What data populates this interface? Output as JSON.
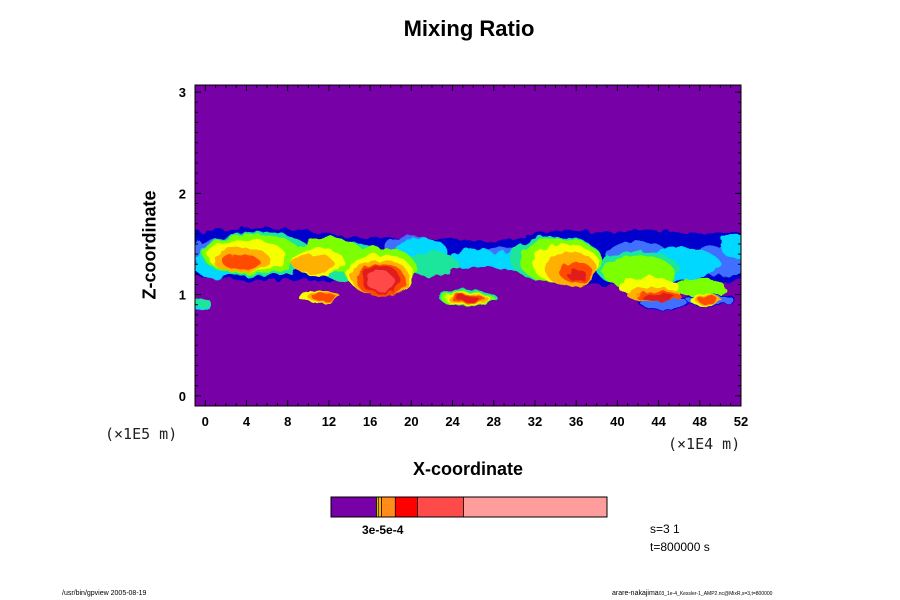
{
  "chart_data": {
    "type": "heatmap",
    "title": "Mixing Ratio",
    "xlabel": "X-coordinate",
    "ylabel": "Z-coordinate",
    "x_unit": "(×1E4 m)",
    "y_unit": "(×1E5 m)",
    "xlim": [
      -1,
      52
    ],
    "ylim": [
      -0.1,
      3.07
    ],
    "x_ticks": [
      "0",
      "4",
      "8",
      "12",
      "16",
      "20",
      "24",
      "28",
      "32",
      "36",
      "40",
      "44",
      "48",
      "52"
    ],
    "y_ticks": [
      "0",
      "1",
      "2",
      "3"
    ],
    "x_tick_values": [
      0,
      4,
      8,
      12,
      16,
      20,
      24,
      28,
      32,
      36,
      40,
      44,
      48,
      52
    ],
    "y_tick_values": [
      0,
      1,
      2,
      3
    ],
    "background_color": "#7700a6",
    "band": {
      "top_edge": [
        [
          -1,
          1.62
        ],
        [
          2,
          1.64
        ],
        [
          6,
          1.66
        ],
        [
          10,
          1.63
        ],
        [
          13,
          1.58
        ],
        [
          15,
          1.56
        ],
        [
          18,
          1.57
        ],
        [
          21,
          1.56
        ],
        [
          24,
          1.55
        ],
        [
          27,
          1.52
        ],
        [
          30,
          1.55
        ],
        [
          33,
          1.62
        ],
        [
          36,
          1.63
        ],
        [
          39,
          1.61
        ],
        [
          42,
          1.64
        ],
        [
          45,
          1.62
        ],
        [
          48,
          1.6
        ],
        [
          52,
          1.62
        ]
      ],
      "bottom_edge": [
        [
          -1,
          1.18
        ],
        [
          4,
          1.14
        ],
        [
          8,
          1.15
        ],
        [
          12,
          1.13
        ],
        [
          15,
          1.17
        ],
        [
          18,
          1.22
        ],
        [
          21,
          1.28
        ],
        [
          24,
          1.31
        ],
        [
          27,
          1.28
        ],
        [
          30,
          1.27
        ],
        [
          33,
          1.19
        ],
        [
          37,
          1.1
        ],
        [
          40,
          1.09
        ],
        [
          43,
          1.02
        ],
        [
          46,
          1.04
        ],
        [
          49,
          1.07
        ],
        [
          52,
          1.15
        ]
      ]
    },
    "levels": [
      {
        "color": "#0000cc",
        "blobs": [
          [
            0.5,
            1.42,
            3,
            0.18
          ],
          [
            14,
            1.38,
            3,
            0.15
          ],
          [
            25,
            1.4,
            3,
            0.12
          ],
          [
            41,
            1.4,
            4,
            0.18
          ],
          [
            48,
            1.3,
            5,
            0.2
          ],
          [
            51,
            1.45,
            1.5,
            0.15
          ],
          [
            44.5,
            0.92,
            2.5,
            0.07
          ],
          [
            49,
            0.95,
            2.5,
            0.06
          ]
        ]
      },
      {
        "color": "#3f70ff",
        "blobs": [
          [
            1.5,
            1.4,
            3,
            0.16
          ],
          [
            20,
            1.46,
            2.8,
            0.12
          ],
          [
            29,
            1.36,
            2.5,
            0.1
          ],
          [
            42,
            1.38,
            3,
            0.15
          ],
          [
            50,
            1.33,
            3,
            0.15
          ],
          [
            44.5,
            0.92,
            2.3,
            0.06
          ],
          [
            49,
            0.95,
            2.3,
            0.05
          ]
        ]
      },
      {
        "color": "#00d8ff",
        "blobs": [
          [
            1,
            1.3,
            2.2,
            0.14
          ],
          [
            21,
            1.42,
            2.5,
            0.14
          ],
          [
            26,
            1.36,
            2.2,
            0.1
          ],
          [
            30,
            1.33,
            2.5,
            0.1
          ],
          [
            46,
            1.3,
            4,
            0.16
          ],
          [
            51.5,
            1.48,
            1.5,
            0.12
          ],
          [
            -0.5,
            0.9,
            1,
            0.05
          ]
        ]
      },
      {
        "color": "#1ee69b",
        "blobs": [
          [
            5,
            1.4,
            5.5,
            0.22
          ],
          [
            14,
            1.32,
            3,
            0.2
          ],
          [
            22,
            1.3,
            2.5,
            0.12
          ],
          [
            34,
            1.35,
            4.5,
            0.22
          ],
          [
            42,
            1.25,
            4,
            0.18
          ],
          [
            25.5,
            0.97,
            2.8,
            0.08
          ],
          [
            -0.3,
            0.92,
            0.8,
            0.05
          ]
        ]
      },
      {
        "color": "#7cff00",
        "blobs": [
          [
            4.5,
            1.4,
            4.8,
            0.2
          ],
          [
            12,
            1.38,
            3.5,
            0.18
          ],
          [
            17,
            1.25,
            3.5,
            0.22
          ],
          [
            34.5,
            1.33,
            4,
            0.22
          ],
          [
            42,
            1.22,
            3.5,
            0.16
          ],
          [
            48,
            1.07,
            2.5,
            0.09
          ],
          [
            25.5,
            0.96,
            2.6,
            0.07
          ]
        ]
      },
      {
        "color": "#f6ff00",
        "blobs": [
          [
            4,
            1.38,
            3.8,
            0.16
          ],
          [
            11,
            1.32,
            2.5,
            0.14
          ],
          [
            17,
            1.2,
            3.2,
            0.2
          ],
          [
            35,
            1.3,
            3.2,
            0.2
          ],
          [
            43,
            1.08,
            3,
            0.09
          ],
          [
            48.5,
            0.95,
            1.5,
            0.05
          ],
          [
            25.5,
            0.96,
            2.2,
            0.06
          ],
          [
            11,
            0.98,
            2,
            0.06
          ]
        ]
      },
      {
        "color": "#ffb000",
        "blobs": [
          [
            3.5,
            1.34,
            2.8,
            0.12
          ],
          [
            10.5,
            1.3,
            2,
            0.1
          ],
          [
            17,
            1.17,
            2.8,
            0.18
          ],
          [
            35.5,
            1.25,
            2.5,
            0.17
          ],
          [
            43.5,
            1.0,
            2.6,
            0.07
          ],
          [
            25.5,
            0.96,
            2,
            0.05
          ],
          [
            48.8,
            0.95,
            1.3,
            0.04
          ],
          [
            11.5,
            0.98,
            1.6,
            0.05
          ]
        ]
      },
      {
        "color": "#ff4b00",
        "blobs": [
          [
            3.5,
            1.32,
            1.8,
            0.08
          ],
          [
            17,
            1.15,
            2.4,
            0.16
          ],
          [
            36,
            1.22,
            1.6,
            0.1
          ],
          [
            44,
            0.98,
            2.2,
            0.05
          ],
          [
            11.5,
            0.98,
            1.2,
            0.04
          ],
          [
            25.5,
            0.96,
            1.6,
            0.04
          ],
          [
            48.8,
            0.95,
            1,
            0.03
          ]
        ]
      },
      {
        "color": "#e11a1a",
        "blobs": [
          [
            17,
            1.15,
            1.9,
            0.14
          ],
          [
            36,
            1.2,
            0.9,
            0.06
          ],
          [
            44,
            0.97,
            1.6,
            0.04
          ],
          [
            25.5,
            0.96,
            1.1,
            0.03
          ]
        ]
      },
      {
        "color": "#ff4a4a",
        "blobs": [
          [
            17,
            1.13,
            1.3,
            0.1
          ]
        ]
      }
    ],
    "colorbar": {
      "segments": [
        {
          "color": "#7700a6",
          "fraction": 0.165
        },
        {
          "color": "#f6ff00",
          "fraction": 0.006
        },
        {
          "color": "#ffb000",
          "fraction": 0.012
        },
        {
          "color": "#ff8c1a",
          "fraction": 0.05
        },
        {
          "color": "#ff0000",
          "fraction": 0.08
        },
        {
          "color": "#ff4a4a",
          "fraction": 0.167
        },
        {
          "color": "#ff9c9c",
          "fraction": 0.52
        }
      ],
      "label": "3e-5e-4"
    },
    "annotations": {
      "s": "s=3 1",
      "t": "t=800000 s",
      "footer_left": "/usr/bin/gpview 2005-08-19",
      "footer_right": "arare-nakajima",
      "footer_right_small": "03_1e-4_Kessler-1_AMP2.nc@MixR,s=3,t=800000"
    }
  }
}
